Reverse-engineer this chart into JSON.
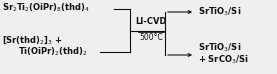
{
  "top_left_label": "Sr$_2$Ti$_2$(OiPr)$_8$(thd)$_4$",
  "bottom_left_label1": "[Sr(thd)$_2$]$_3$ +",
  "bottom_left_label2": "Ti(OiPr)$_2$(thd)$_2$",
  "center_top_label": "LI-CVD",
  "center_bottom_label": "500°C",
  "top_right_label": "SrTiO$_3$/Si",
  "bottom_right_label1": "SrTiO$_3$/Si",
  "bottom_right_label2": "+ SrCO$_3$/Si",
  "bg_color": "#efefef",
  "text_color": "#111111",
  "line_color": "#111111",
  "font_size": 6.0
}
